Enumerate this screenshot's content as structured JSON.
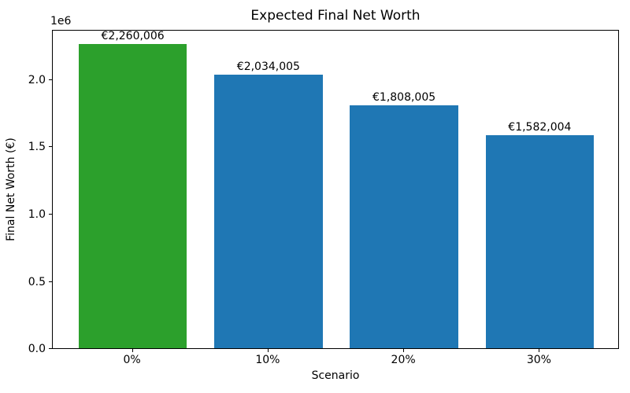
{
  "chart_data": {
    "type": "bar",
    "title": "Expected Final Net Worth",
    "xlabel": "Scenario",
    "ylabel": "Final Net Worth (€)",
    "categories": [
      "0%",
      "10%",
      "20%",
      "30%"
    ],
    "values": [
      2260006,
      2034005,
      1808005,
      1582004
    ],
    "bar_labels": [
      "€2,260,006",
      "€2,034,005",
      "€1,808,005",
      "€1,582,004"
    ],
    "bar_colors": [
      "#2ca02c",
      "#1f77b4",
      "#1f77b4",
      "#1f77b4"
    ],
    "highlight_color": "#2ca02c",
    "default_bar_color": "#1f77b4",
    "ylim": [
      0,
      2373000
    ],
    "yticks": [
      0,
      500000,
      1000000,
      1500000,
      2000000
    ],
    "ytick_labels": [
      "0.0",
      "0.5",
      "1.0",
      "1.5",
      "2.0"
    ],
    "offset_text": "1e6",
    "grid": false,
    "legend_position": "none"
  }
}
